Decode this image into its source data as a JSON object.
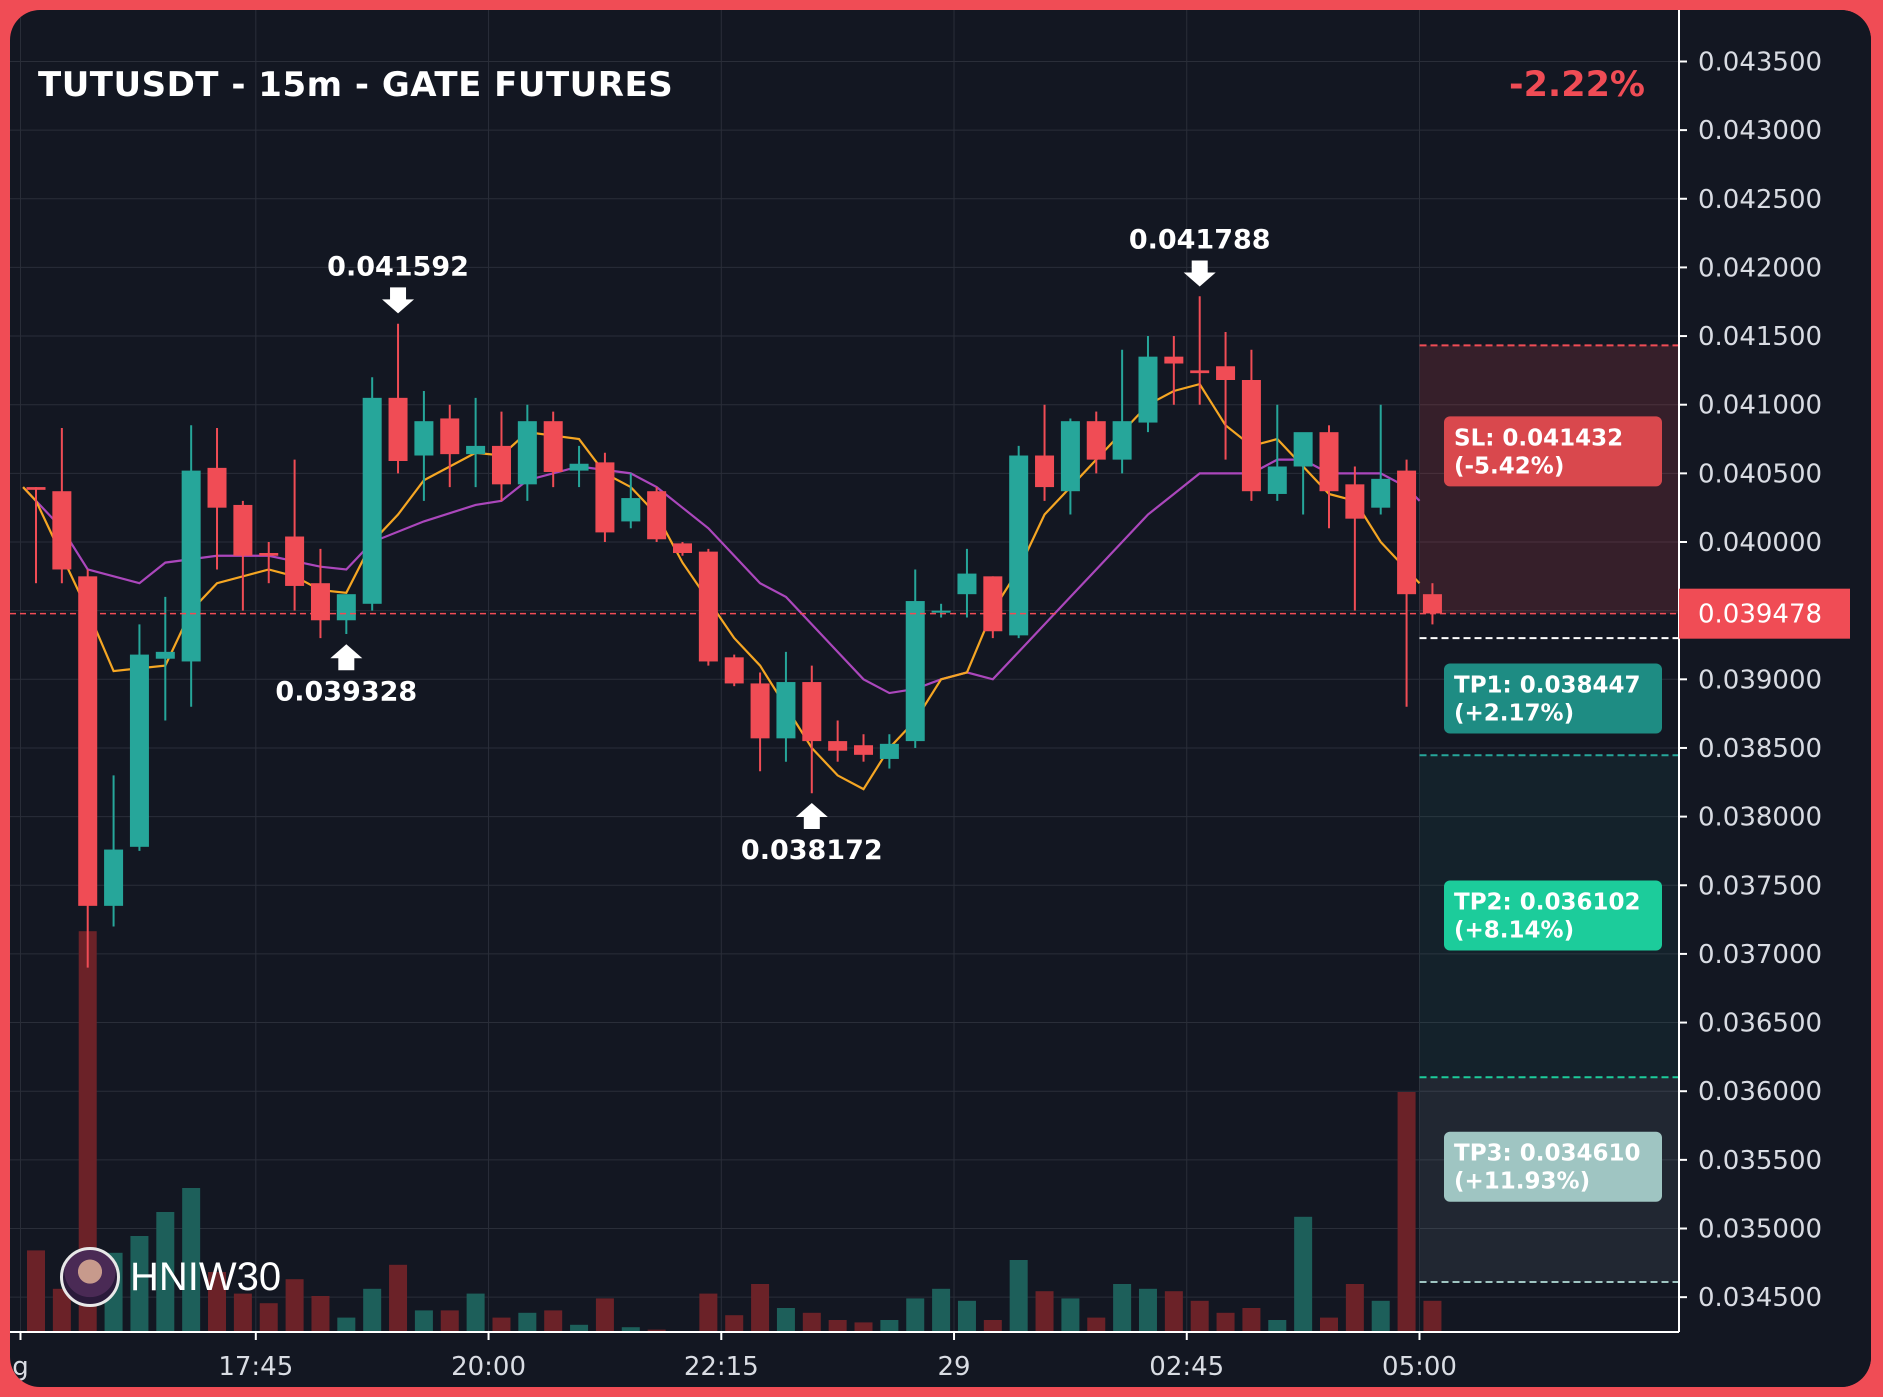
{
  "header": {
    "title": "TUTUSDT - 15m - GATE FUTURES",
    "change": "-2.22%"
  },
  "watermark": {
    "handle": "HNIW30",
    "icon": "avatar-icon"
  },
  "colors": {
    "background": "#131722",
    "frame": "#f04c55",
    "up": "#26a69a",
    "down": "#f04c55",
    "ema_fast": "#f5a623",
    "ema_slow": "#ab47bc",
    "sl": "#d9484d",
    "tp1": "#1e8c83",
    "tp2": "#1ccc9b",
    "tp3": "#9fc5c2"
  },
  "chart_data": {
    "type": "candlestick",
    "title": "TUTUSDT - 15m - GATE FUTURES",
    "y_axis": {
      "min": 0.03415,
      "max": 0.0437,
      "ticks": [
        "0.043500",
        "0.043000",
        "0.042500",
        "0.042000",
        "0.041500",
        "0.041000",
        "0.040500",
        "0.040000",
        "0.039500",
        "0.039000",
        "0.038500",
        "0.038000",
        "0.037500",
        "0.037000",
        "0.036500",
        "0.036000",
        "0.035500",
        "0.035000",
        "0.034500"
      ]
    },
    "x_axis": {
      "labels": [
        {
          "label": "g",
          "bar": -0.6
        },
        {
          "label": "17:45",
          "bar": 8.5
        },
        {
          "label": "20:00",
          "bar": 17.5
        },
        {
          "label": "22:15",
          "bar": 26.5
        },
        {
          "label": "29",
          "bar": 35.5
        },
        {
          "label": "02:45",
          "bar": 44.5
        },
        {
          "label": "05:00",
          "bar": 53.5
        }
      ]
    },
    "grid": true,
    "current_price": "0.039478",
    "candles": [
      {
        "o": 0.0404,
        "h": 0.0404,
        "l": 0.0397,
        "c": 0.04038
      },
      {
        "o": 0.04037,
        "h": 0.04083,
        "l": 0.0397,
        "c": 0.0398
      },
      {
        "o": 0.03975,
        "h": 0.0398,
        "l": 0.0369,
        "c": 0.03735
      },
      {
        "o": 0.03735,
        "h": 0.0383,
        "l": 0.0372,
        "c": 0.03776
      },
      {
        "o": 0.03778,
        "h": 0.0394,
        "l": 0.03775,
        "c": 0.03918
      },
      {
        "o": 0.03915,
        "h": 0.0396,
        "l": 0.0387,
        "c": 0.0392
      },
      {
        "o": 0.03913,
        "h": 0.04085,
        "l": 0.0388,
        "c": 0.04052
      },
      {
        "o": 0.04054,
        "h": 0.04083,
        "l": 0.0398,
        "c": 0.04025
      },
      {
        "o": 0.04027,
        "h": 0.0403,
        "l": 0.0395,
        "c": 0.0399
      },
      {
        "o": 0.03992,
        "h": 0.04,
        "l": 0.0397,
        "c": 0.0399
      },
      {
        "o": 0.04004,
        "h": 0.0406,
        "l": 0.0395,
        "c": 0.03968
      },
      {
        "o": 0.0397,
        "h": 0.03995,
        "l": 0.0393,
        "c": 0.03943
      },
      {
        "o": 0.03943,
        "h": 0.03955,
        "l": 0.03933,
        "c": 0.03962
      },
      {
        "o": 0.03955,
        "h": 0.0412,
        "l": 0.0395,
        "c": 0.04105
      },
      {
        "o": 0.04105,
        "h": 0.04159,
        "l": 0.0405,
        "c": 0.04059
      },
      {
        "o": 0.04063,
        "h": 0.0411,
        "l": 0.0403,
        "c": 0.04088
      },
      {
        "o": 0.0409,
        "h": 0.041,
        "l": 0.0404,
        "c": 0.04064
      },
      {
        "o": 0.04064,
        "h": 0.04105,
        "l": 0.0404,
        "c": 0.0407
      },
      {
        "o": 0.0407,
        "h": 0.04095,
        "l": 0.0403,
        "c": 0.04042
      },
      {
        "o": 0.04042,
        "h": 0.041,
        "l": 0.0403,
        "c": 0.04088
      },
      {
        "o": 0.04088,
        "h": 0.04095,
        "l": 0.0404,
        "c": 0.04051
      },
      {
        "o": 0.04052,
        "h": 0.0407,
        "l": 0.0404,
        "c": 0.04057
      },
      {
        "o": 0.04058,
        "h": 0.04065,
        "l": 0.04,
        "c": 0.04007
      },
      {
        "o": 0.04015,
        "h": 0.0405,
        "l": 0.0401,
        "c": 0.04032
      },
      {
        "o": 0.04037,
        "h": 0.0404,
        "l": 0.04,
        "c": 0.04002
      },
      {
        "o": 0.03999,
        "h": 0.04,
        "l": 0.0399,
        "c": 0.03992
      },
      {
        "o": 0.03993,
        "h": 0.03995,
        "l": 0.0391,
        "c": 0.03913
      },
      {
        "o": 0.03916,
        "h": 0.03918,
        "l": 0.03895,
        "c": 0.03897
      },
      {
        "o": 0.03897,
        "h": 0.03905,
        "l": 0.03833,
        "c": 0.03857
      },
      {
        "o": 0.03857,
        "h": 0.0392,
        "l": 0.0384,
        "c": 0.03898
      },
      {
        "o": 0.03898,
        "h": 0.0391,
        "l": 0.03817,
        "c": 0.03855
      },
      {
        "o": 0.03855,
        "h": 0.0387,
        "l": 0.0384,
        "c": 0.03848
      },
      {
        "o": 0.03852,
        "h": 0.0386,
        "l": 0.0384,
        "c": 0.03845
      },
      {
        "o": 0.03842,
        "h": 0.0386,
        "l": 0.03835,
        "c": 0.03853
      },
      {
        "o": 0.03855,
        "h": 0.0398,
        "l": 0.0385,
        "c": 0.03957
      },
      {
        "o": 0.0395,
        "h": 0.03955,
        "l": 0.03945,
        "c": 0.0395
      },
      {
        "o": 0.03962,
        "h": 0.03995,
        "l": 0.03945,
        "c": 0.03977
      },
      {
        "o": 0.03975,
        "h": 0.03975,
        "l": 0.0393,
        "c": 0.03935
      },
      {
        "o": 0.03932,
        "h": 0.0407,
        "l": 0.0393,
        "c": 0.04063
      },
      {
        "o": 0.04063,
        "h": 0.041,
        "l": 0.0403,
        "c": 0.0404
      },
      {
        "o": 0.04037,
        "h": 0.0409,
        "l": 0.0402,
        "c": 0.04088
      },
      {
        "o": 0.04088,
        "h": 0.04095,
        "l": 0.0405,
        "c": 0.0406
      },
      {
        "o": 0.0406,
        "h": 0.0414,
        "l": 0.0405,
        "c": 0.04088
      },
      {
        "o": 0.04087,
        "h": 0.0415,
        "l": 0.0408,
        "c": 0.04135
      },
      {
        "o": 0.04135,
        "h": 0.0415,
        "l": 0.041,
        "c": 0.0413
      },
      {
        "o": 0.04125,
        "h": 0.04179,
        "l": 0.041,
        "c": 0.04123
      },
      {
        "o": 0.04128,
        "h": 0.04153,
        "l": 0.0406,
        "c": 0.04118
      },
      {
        "o": 0.04118,
        "h": 0.0414,
        "l": 0.0403,
        "c": 0.04037
      },
      {
        "o": 0.04035,
        "h": 0.041,
        "l": 0.0403,
        "c": 0.04055
      },
      {
        "o": 0.04055,
        "h": 0.04075,
        "l": 0.0402,
        "c": 0.0408
      },
      {
        "o": 0.0408,
        "h": 0.04085,
        "l": 0.0401,
        "c": 0.04037
      },
      {
        "o": 0.04042,
        "h": 0.04055,
        "l": 0.0395,
        "c": 0.04017
      },
      {
        "o": 0.04025,
        "h": 0.041,
        "l": 0.0402,
        "c": 0.04046
      },
      {
        "o": 0.04052,
        "h": 0.0406,
        "l": 0.0388,
        "c": 0.03962
      },
      {
        "o": 0.03962,
        "h": 0.0397,
        "l": 0.0394,
        "c": 0.03948
      }
    ],
    "volume": [
      0.34,
      0.18,
      1.67,
      0.33,
      0.4,
      0.5,
      0.6,
      0.25,
      0.16,
      0.12,
      0.22,
      0.15,
      0.06,
      0.18,
      0.28,
      0.09,
      0.09,
      0.16,
      0.06,
      0.08,
      0.09,
      0.03,
      0.14,
      0.02,
      0.01,
      0.0,
      0.16,
      0.07,
      0.2,
      0.1,
      0.08,
      0.05,
      0.04,
      0.05,
      0.14,
      0.18,
      0.13,
      0.05,
      0.3,
      0.17,
      0.14,
      0.06,
      0.2,
      0.18,
      0.17,
      0.13,
      0.08,
      0.1,
      0.05,
      0.48,
      0.06,
      0.2,
      0.13,
      1.0,
      0.13
    ],
    "ema_fast": [
      {
        "bar": -0.5,
        "v": 0.0404
      },
      {
        "bar": 0,
        "v": 0.0403
      },
      {
        "bar": 1,
        "v": 0.0399
      },
      {
        "bar": 2,
        "v": 0.0395
      },
      {
        "bar": 3,
        "v": 0.03906
      },
      {
        "bar": 5,
        "v": 0.0391
      },
      {
        "bar": 6,
        "v": 0.0395
      },
      {
        "bar": 7,
        "v": 0.0397
      },
      {
        "bar": 9,
        "v": 0.0398
      },
      {
        "bar": 10,
        "v": 0.03975
      },
      {
        "bar": 11,
        "v": 0.03965
      },
      {
        "bar": 12,
        "v": 0.03963
      },
      {
        "bar": 13,
        "v": 0.04
      },
      {
        "bar": 14,
        "v": 0.0402
      },
      {
        "bar": 15,
        "v": 0.04045
      },
      {
        "bar": 17,
        "v": 0.04065
      },
      {
        "bar": 18,
        "v": 0.04063
      },
      {
        "bar": 19,
        "v": 0.0408
      },
      {
        "bar": 21,
        "v": 0.04075
      },
      {
        "bar": 22,
        "v": 0.0405
      },
      {
        "bar": 23,
        "v": 0.0404
      },
      {
        "bar": 24,
        "v": 0.0402
      },
      {
        "bar": 25,
        "v": 0.03985
      },
      {
        "bar": 27,
        "v": 0.0393
      },
      {
        "bar": 28,
        "v": 0.0391
      },
      {
        "bar": 29,
        "v": 0.0388
      },
      {
        "bar": 30,
        "v": 0.0385
      },
      {
        "bar": 31,
        "v": 0.0383
      },
      {
        "bar": 32,
        "v": 0.0382
      },
      {
        "bar": 33,
        "v": 0.0385
      },
      {
        "bar": 34,
        "v": 0.0387
      },
      {
        "bar": 35,
        "v": 0.039
      },
      {
        "bar": 36,
        "v": 0.03905
      },
      {
        "bar": 37,
        "v": 0.0395
      },
      {
        "bar": 38,
        "v": 0.0398
      },
      {
        "bar": 39,
        "v": 0.0402
      },
      {
        "bar": 40,
        "v": 0.0404
      },
      {
        "bar": 41,
        "v": 0.0406
      },
      {
        "bar": 42,
        "v": 0.0408
      },
      {
        "bar": 43,
        "v": 0.041
      },
      {
        "bar": 44,
        "v": 0.0411
      },
      {
        "bar": 45,
        "v": 0.04115
      },
      {
        "bar": 46,
        "v": 0.04085
      },
      {
        "bar": 47,
        "v": 0.0407
      },
      {
        "bar": 48,
        "v": 0.04075
      },
      {
        "bar": 49,
        "v": 0.04055
      },
      {
        "bar": 50,
        "v": 0.04035
      },
      {
        "bar": 51,
        "v": 0.0403
      },
      {
        "bar": 52,
        "v": 0.04
      },
      {
        "bar": 53,
        "v": 0.0398
      },
      {
        "bar": 53.5,
        "v": 0.0397
      }
    ],
    "ema_slow": [
      {
        "bar": -0.5,
        "v": 0.0404
      },
      {
        "bar": 0,
        "v": 0.0403
      },
      {
        "bar": 1,
        "v": 0.0401
      },
      {
        "bar": 2,
        "v": 0.0398
      },
      {
        "bar": 4,
        "v": 0.0397
      },
      {
        "bar": 5,
        "v": 0.03985
      },
      {
        "bar": 7,
        "v": 0.0399
      },
      {
        "bar": 9,
        "v": 0.0399
      },
      {
        "bar": 11,
        "v": 0.03982
      },
      {
        "bar": 12,
        "v": 0.0398
      },
      {
        "bar": 13,
        "v": 0.04
      },
      {
        "bar": 15,
        "v": 0.04015
      },
      {
        "bar": 17,
        "v": 0.04027
      },
      {
        "bar": 18,
        "v": 0.0403
      },
      {
        "bar": 19,
        "v": 0.04045
      },
      {
        "bar": 21,
        "v": 0.04055
      },
      {
        "bar": 23,
        "v": 0.0405
      },
      {
        "bar": 24,
        "v": 0.0404
      },
      {
        "bar": 25,
        "v": 0.04025
      },
      {
        "bar": 26,
        "v": 0.0401
      },
      {
        "bar": 27,
        "v": 0.0399
      },
      {
        "bar": 28,
        "v": 0.0397
      },
      {
        "bar": 29,
        "v": 0.0396
      },
      {
        "bar": 30,
        "v": 0.0394
      },
      {
        "bar": 31,
        "v": 0.0392
      },
      {
        "bar": 32,
        "v": 0.039
      },
      {
        "bar": 33,
        "v": 0.0389
      },
      {
        "bar": 34,
        "v": 0.03893
      },
      {
        "bar": 35,
        "v": 0.039
      },
      {
        "bar": 36,
        "v": 0.03905
      },
      {
        "bar": 37,
        "v": 0.039
      },
      {
        "bar": 38,
        "v": 0.0392
      },
      {
        "bar": 39,
        "v": 0.0394
      },
      {
        "bar": 40,
        "v": 0.0396
      },
      {
        "bar": 41,
        "v": 0.0398
      },
      {
        "bar": 42,
        "v": 0.04
      },
      {
        "bar": 43,
        "v": 0.0402
      },
      {
        "bar": 44,
        "v": 0.04035
      },
      {
        "bar": 45,
        "v": 0.0405
      },
      {
        "bar": 46,
        "v": 0.0405
      },
      {
        "bar": 47,
        "v": 0.0405
      },
      {
        "bar": 48,
        "v": 0.0406
      },
      {
        "bar": 49,
        "v": 0.0406
      },
      {
        "bar": 50,
        "v": 0.0405
      },
      {
        "bar": 51,
        "v": 0.0405
      },
      {
        "bar": 52,
        "v": 0.0405
      },
      {
        "bar": 53,
        "v": 0.0404
      },
      {
        "bar": 53.5,
        "v": 0.0403
      }
    ],
    "annotations": [
      {
        "label": "0.041592",
        "price": 0.041592,
        "bar": 14,
        "dir": "down"
      },
      {
        "label": "0.039328",
        "price": 0.039328,
        "bar": 12,
        "dir": "up"
      },
      {
        "label": "0.038172",
        "price": 0.038172,
        "bar": 30,
        "dir": "up"
      },
      {
        "label": "0.041788",
        "price": 0.041788,
        "bar": 45,
        "dir": "down"
      }
    ],
    "trade": {
      "entry": 0.0393,
      "levels": [
        {
          "key": "sl",
          "label": "SL: 0.041432",
          "pct": "(-5.42%)",
          "price": 0.041432,
          "box_color": "#d9484d",
          "text_color": "#ffffff",
          "line": "#f04c55",
          "zone": "rgba(240,76,85,0.16)"
        },
        {
          "key": "tp1",
          "label": "TP1: 0.038447",
          "pct": "(+2.17%)",
          "price": 0.038447,
          "box_color": "#1e8c83",
          "text_color": "#ffffff",
          "line": "#26a69a",
          "zone": "rgba(38,166,154,0.08)"
        },
        {
          "key": "tp2",
          "label": "TP2: 0.036102",
          "pct": "(+8.14%)",
          "price": 0.036102,
          "box_color": "#1ccc9b",
          "text_color": "#ffffff",
          "line": "#1ccc9b",
          "zone": "rgba(38,166,154,0.10)"
        },
        {
          "key": "tp3",
          "label": "TP3: 0.034610",
          "pct": "(+11.93%)",
          "price": 0.03461,
          "box_color": "#9fc5c2",
          "text_color": "#ffffff",
          "line": "#9fc5c2",
          "zone": "rgba(160,190,200,0.10)"
        }
      ]
    }
  }
}
